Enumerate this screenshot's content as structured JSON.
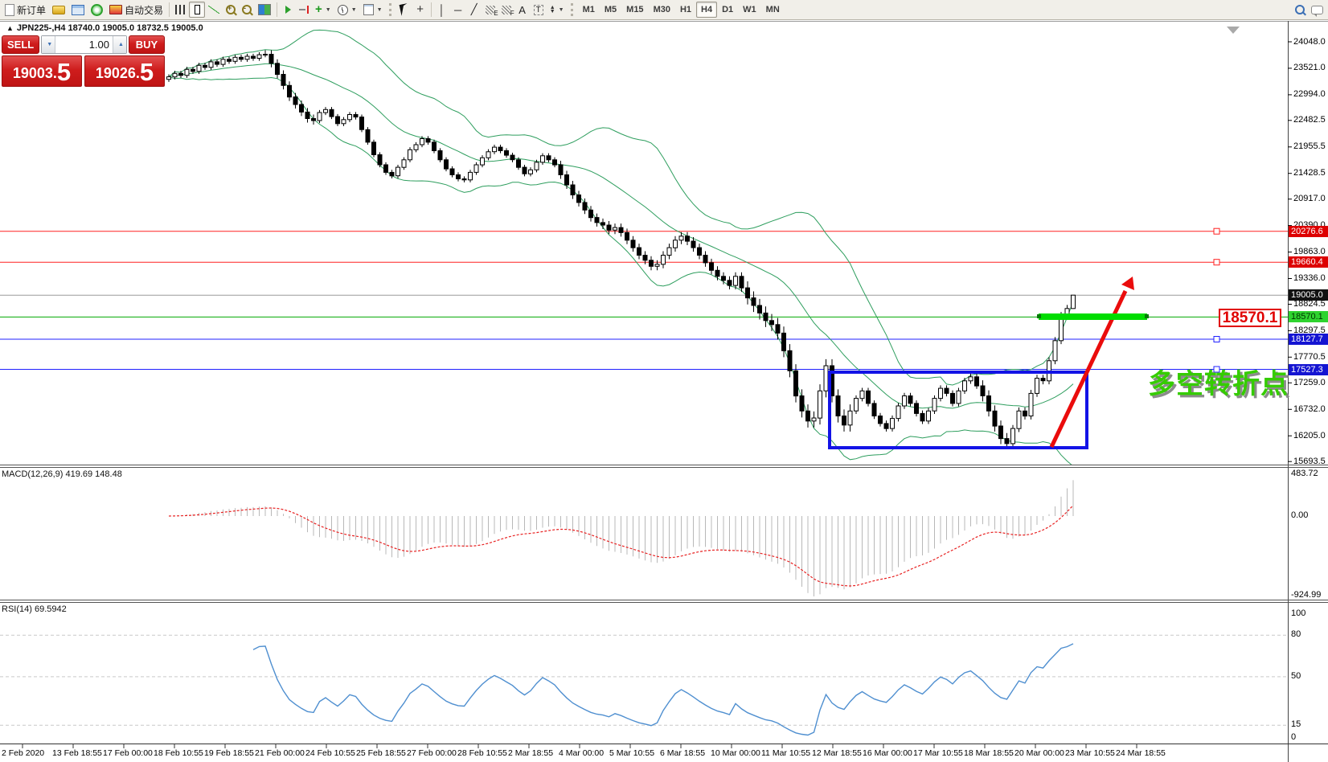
{
  "toolbar": {
    "new_order_label": "新订单",
    "autotrading_label": "自动交易",
    "timeframes": [
      "M1",
      "M5",
      "M15",
      "M30",
      "H1",
      "H4",
      "D1",
      "W1",
      "MN"
    ],
    "active_timeframe": "H4",
    "glyphs": {
      "vline": "│",
      "hline": "─",
      "trendline": "╱",
      "text_tool": "A",
      "label_tool": "T",
      "fibo_e": "E",
      "fibo_f": "F",
      "caret": "▼",
      "up": "▲",
      "down": "▼",
      "zoom_plus": "+",
      "zoom_minus": "-",
      "indicators_plus": "+",
      "crosshair": "+"
    },
    "icon_names": [
      "new-order-icon",
      "gold-icon",
      "chart-profile-icon",
      "signal-icon",
      "autotrading-icon",
      "bar-chart-icon",
      "candlestick-chart-icon",
      "line-chart-icon",
      "zoom-in-icon",
      "zoom-out-icon",
      "tile-windows-icon",
      "auto-scroll-icon",
      "chart-shift-icon",
      "indicators-icon",
      "periods-icon",
      "templates-icon",
      "cursor-icon",
      "crosshair-icon",
      "vertical-line-icon",
      "horizontal-line-icon",
      "trendline-icon",
      "fibonacci-icon",
      "fibonacci-expansion-icon",
      "text-icon",
      "text-label-icon",
      "arrows-icon",
      "search-icon",
      "chat-icon"
    ]
  },
  "chart": {
    "collapse_arrow": "▲",
    "title_text": "JPN225-,H4  18740.0 19005.0 18732.5 19005.0",
    "symbol": "JPN225-",
    "period": "H4"
  },
  "one_click": {
    "sell_label": "SELL",
    "buy_label": "BUY",
    "volume": "1.00",
    "sell_price_main": "19003",
    "sell_price_frac": "5",
    "buy_price_main": "19026",
    "buy_price_frac": "5",
    "decimal_point": "."
  },
  "annotations": {
    "price_box_label": "18570.1",
    "turning_point_text": "多空转折点",
    "highlight_color": "#00dd00",
    "rect_color": "#1313e6",
    "arrow_color": "#ea0c0c"
  },
  "chart_data": {
    "type": "candlestick",
    "title": "JPN225-,H4",
    "current_candle": {
      "open": 18740.0,
      "high": 19005.0,
      "low": 18732.5,
      "close": 19005.0
    },
    "ylim": [
      15630,
      24400
    ],
    "y_ticks": [
      "24048.0",
      "23521.0",
      "22994.0",
      "22482.5",
      "21955.5",
      "21428.5",
      "20917.0",
      "20390.0",
      "19863.0",
      "19336.0",
      "18824.5",
      "18297.5",
      "17770.5",
      "17259.0",
      "16732.0",
      "16205.0",
      "15693.5"
    ],
    "x_labels": [
      "2 Feb 2020",
      "13 Feb 18:55",
      "17 Feb 00:00",
      "18 Feb 10:55",
      "19 Feb 18:55",
      "21 Feb 00:00",
      "24 Feb 10:55",
      "25 Feb 18:55",
      "27 Feb 00:00",
      "28 Feb 10:55",
      "2 Mar 18:55",
      "4 Mar 00:00",
      "5 Mar 10:55",
      "6 Mar 18:55",
      "10 Mar 00:00",
      "11 Mar 10:55",
      "12 Mar 18:55",
      "16 Mar 00:00",
      "17 Mar 10:55",
      "18 Mar 18:55",
      "20 Mar 00:00",
      "23 Mar 10:55",
      "24 Mar 18:55"
    ],
    "levels": [
      {
        "value": "20276.6",
        "price": 20276.6,
        "bg": "#dd0000",
        "fg": "#ffffff",
        "line": "#ff2020",
        "handle": true
      },
      {
        "value": "19660.4",
        "price": 19660.4,
        "bg": "#dd0000",
        "fg": "#ffffff",
        "line": "#ff2020",
        "handle": true
      },
      {
        "value": "19005.0",
        "price": 19005.0,
        "bg": "#111111",
        "fg": "#ffffff",
        "line": "#9a9a9a",
        "handle": false
      },
      {
        "value": "18570.1",
        "price": 18570.1,
        "bg": "#2fd32f",
        "fg": "#003300",
        "line": "#00a800",
        "handle": false
      },
      {
        "value": "18127.7",
        "price": 18127.7,
        "bg": "#1414d2",
        "fg": "#ffffff",
        "line": "#2020ff",
        "handle": true
      },
      {
        "value": "17527.3",
        "price": 17527.3,
        "bg": "#1414d2",
        "fg": "#ffffff",
        "line": "#2020ff",
        "handle": true
      }
    ],
    "indicators": {
      "bollinger": {
        "period": 20,
        "deviation": 2,
        "color": "#2e9e5e"
      },
      "macd": {
        "label": "MACD(12,26,9) 419.69 148.48",
        "value": 419.69,
        "signal": 148.48,
        "ticks": [
          "483.72",
          "0.00",
          "-924.99"
        ],
        "histogram_color": "#b8b8b8",
        "signal_color": "#e82222"
      },
      "rsi": {
        "label": "RSI(14) 69.5942",
        "value": 69.5942,
        "ticks": [
          "100",
          "80",
          "50",
          "15",
          "0"
        ],
        "levels": [
          80,
          50,
          15
        ],
        "color": "#4f8fd0"
      }
    },
    "ohlc": [
      [
        23300,
        23400,
        23250,
        23350
      ],
      [
        23350,
        23470,
        23300,
        23420
      ],
      [
        23420,
        23470,
        23330,
        23380
      ],
      [
        23380,
        23550,
        23330,
        23500
      ],
      [
        23500,
        23550,
        23410,
        23460
      ],
      [
        23460,
        23630,
        23410,
        23580
      ],
      [
        23580,
        23630,
        23490,
        23540
      ],
      [
        23540,
        23700,
        23490,
        23650
      ],
      [
        23650,
        23700,
        23550,
        23600
      ],
      [
        23600,
        23750,
        23550,
        23700
      ],
      [
        23700,
        23750,
        23610,
        23660
      ],
      [
        23660,
        23790,
        23610,
        23740
      ],
      [
        23740,
        23790,
        23650,
        23700
      ],
      [
        23700,
        23810,
        23650,
        23760
      ],
      [
        23760,
        23810,
        23670,
        23720
      ],
      [
        23720,
        23840,
        23670,
        23790
      ],
      [
        23790,
        23880,
        23740,
        23800
      ],
      [
        23800,
        23880,
        23540,
        23620
      ],
      [
        23620,
        23700,
        23320,
        23400
      ],
      [
        23400,
        23480,
        23100,
        23180
      ],
      [
        23180,
        23260,
        22870,
        22950
      ],
      [
        22950,
        23030,
        22720,
        22800
      ],
      [
        22800,
        22880,
        22570,
        22650
      ],
      [
        22650,
        22730,
        22440,
        22520
      ],
      [
        22520,
        22600,
        22400,
        22480
      ],
      [
        22480,
        22690,
        22430,
        22640
      ],
      [
        22640,
        22750,
        22590,
        22700
      ],
      [
        22700,
        22750,
        22510,
        22560
      ],
      [
        22560,
        22610,
        22370,
        22420
      ],
      [
        22420,
        22550,
        22370,
        22500
      ],
      [
        22500,
        22650,
        22450,
        22600
      ],
      [
        22600,
        22650,
        22500,
        22550
      ],
      [
        22550,
        22600,
        22250,
        22300
      ],
      [
        22300,
        22350,
        22000,
        22050
      ],
      [
        22050,
        22100,
        21750,
        21800
      ],
      [
        21800,
        21850,
        21550,
        21600
      ],
      [
        21600,
        21650,
        21400,
        21450
      ],
      [
        21450,
        21500,
        21330,
        21380
      ],
      [
        21380,
        21600,
        21330,
        21550
      ],
      [
        21550,
        21750,
        21500,
        21700
      ],
      [
        21700,
        21950,
        21650,
        21900
      ],
      [
        21900,
        22050,
        21850,
        22000
      ],
      [
        22000,
        22170,
        21950,
        22120
      ],
      [
        22120,
        22170,
        22000,
        22050
      ],
      [
        22050,
        22100,
        21830,
        21880
      ],
      [
        21880,
        21930,
        21650,
        21700
      ],
      [
        21700,
        21750,
        21470,
        21520
      ],
      [
        21520,
        21570,
        21350,
        21400
      ],
      [
        21400,
        21450,
        21270,
        21320
      ],
      [
        21320,
        21370,
        21250,
        21300
      ],
      [
        21300,
        21500,
        21250,
        21450
      ],
      [
        21450,
        21650,
        21400,
        21600
      ],
      [
        21600,
        21790,
        21550,
        21740
      ],
      [
        21740,
        21910,
        21690,
        21860
      ],
      [
        21860,
        22000,
        21810,
        21950
      ],
      [
        21950,
        22000,
        21830,
        21880
      ],
      [
        21880,
        21930,
        21740,
        21790
      ],
      [
        21790,
        21840,
        21650,
        21700
      ],
      [
        21700,
        21750,
        21500,
        21550
      ],
      [
        21550,
        21600,
        21370,
        21420
      ],
      [
        21420,
        21550,
        21370,
        21500
      ],
      [
        21500,
        21700,
        21450,
        21650
      ],
      [
        21650,
        21830,
        21600,
        21780
      ],
      [
        21780,
        21830,
        21650,
        21700
      ],
      [
        21700,
        21750,
        21550,
        21600
      ],
      [
        21600,
        21680,
        21320,
        21400
      ],
      [
        21400,
        21480,
        21120,
        21200
      ],
      [
        21200,
        21280,
        20920,
        21000
      ],
      [
        21000,
        21080,
        20770,
        20850
      ],
      [
        20850,
        20930,
        20620,
        20700
      ],
      [
        20700,
        20780,
        20470,
        20550
      ],
      [
        20550,
        20630,
        20370,
        20450
      ],
      [
        20450,
        20530,
        20320,
        20400
      ],
      [
        20400,
        20480,
        20220,
        20300
      ],
      [
        20300,
        20430,
        20220,
        20350
      ],
      [
        20350,
        20430,
        20170,
        20250
      ],
      [
        20250,
        20330,
        20020,
        20100
      ],
      [
        20100,
        20180,
        19870,
        19950
      ],
      [
        19950,
        20030,
        19720,
        19800
      ],
      [
        19800,
        19880,
        19620,
        19700
      ],
      [
        19700,
        19780,
        19500,
        19580
      ],
      [
        19580,
        19700,
        19500,
        19620
      ],
      [
        19620,
        19880,
        19540,
        19800
      ],
      [
        19800,
        20030,
        19720,
        19950
      ],
      [
        19950,
        20180,
        19870,
        20100
      ],
      [
        20100,
        20260,
        20020,
        20180
      ],
      [
        20180,
        20260,
        20000,
        20080
      ],
      [
        20080,
        20160,
        19870,
        19950
      ],
      [
        19950,
        20030,
        19720,
        19800
      ],
      [
        19800,
        19880,
        19570,
        19650
      ],
      [
        19650,
        19730,
        19420,
        19500
      ],
      [
        19500,
        19580,
        19300,
        19380
      ],
      [
        19380,
        19460,
        19220,
        19300
      ],
      [
        19300,
        19380,
        19120,
        19200
      ],
      [
        19200,
        19460,
        19120,
        19380
      ],
      [
        19380,
        19460,
        19070,
        19150
      ],
      [
        19150,
        19280,
        18820,
        18950
      ],
      [
        18950,
        19080,
        18670,
        18800
      ],
      [
        18800,
        18930,
        18520,
        18650
      ],
      [
        18650,
        18780,
        18370,
        18500
      ],
      [
        18500,
        18630,
        18290,
        18420
      ],
      [
        18420,
        18550,
        18120,
        18250
      ],
      [
        18250,
        18380,
        17770,
        17900
      ],
      [
        17900,
        18030,
        17370,
        17500
      ],
      [
        17500,
        17630,
        16870,
        17000
      ],
      [
        17000,
        17130,
        16570,
        16700
      ],
      [
        16700,
        16830,
        16370,
        16500
      ],
      [
        16500,
        16690,
        16370,
        16560
      ],
      [
        16560,
        17230,
        16430,
        17100
      ],
      [
        17100,
        17730,
        16970,
        17600
      ],
      [
        17600,
        17730,
        16870,
        17000
      ],
      [
        17000,
        17130,
        16470,
        16600
      ],
      [
        16600,
        16730,
        16290,
        16420
      ],
      [
        16420,
        16830,
        16290,
        16700
      ],
      [
        16700,
        17010,
        16640,
        16950
      ],
      [
        16950,
        17160,
        16890,
        17100
      ],
      [
        17100,
        17160,
        16790,
        16850
      ],
      [
        16850,
        16910,
        16540,
        16600
      ],
      [
        16600,
        16660,
        16390,
        16450
      ],
      [
        16450,
        16510,
        16290,
        16350
      ],
      [
        16350,
        16610,
        16290,
        16550
      ],
      [
        16550,
        16860,
        16490,
        16800
      ],
      [
        16800,
        17060,
        16740,
        17000
      ],
      [
        17000,
        17060,
        16790,
        16850
      ],
      [
        16850,
        16910,
        16590,
        16650
      ],
      [
        16650,
        16710,
        16440,
        16500
      ],
      [
        16500,
        16760,
        16440,
        16700
      ],
      [
        16700,
        17010,
        16640,
        16950
      ],
      [
        16950,
        17210,
        16890,
        17150
      ],
      [
        17150,
        17210,
        16990,
        17050
      ],
      [
        17050,
        17110,
        16790,
        16850
      ],
      [
        16850,
        17160,
        16790,
        17100
      ],
      [
        17100,
        17360,
        17040,
        17300
      ],
      [
        17300,
        17440,
        17240,
        17380
      ],
      [
        17380,
        17440,
        17140,
        17200
      ],
      [
        17200,
        17310,
        16890,
        17000
      ],
      [
        17000,
        17110,
        16590,
        16700
      ],
      [
        16700,
        16810,
        16290,
        16400
      ],
      [
        16400,
        16510,
        16040,
        16150
      ],
      [
        16150,
        16260,
        15950,
        16050
      ],
      [
        16050,
        16420,
        15980,
        16350
      ],
      [
        16350,
        16770,
        16280,
        16700
      ],
      [
        16700,
        16770,
        16530,
        16600
      ],
      [
        16600,
        17120,
        16530,
        17050
      ],
      [
        17050,
        17420,
        16980,
        17350
      ],
      [
        17350,
        17420,
        17230,
        17300
      ],
      [
        17300,
        17770,
        17230,
        17700
      ],
      [
        17700,
        18170,
        17630,
        18100
      ],
      [
        18100,
        18670,
        18030,
        18600
      ],
      [
        18600,
        18810,
        18530,
        18740
      ],
      [
        18740,
        19005,
        18732.5,
        19005
      ]
    ]
  }
}
